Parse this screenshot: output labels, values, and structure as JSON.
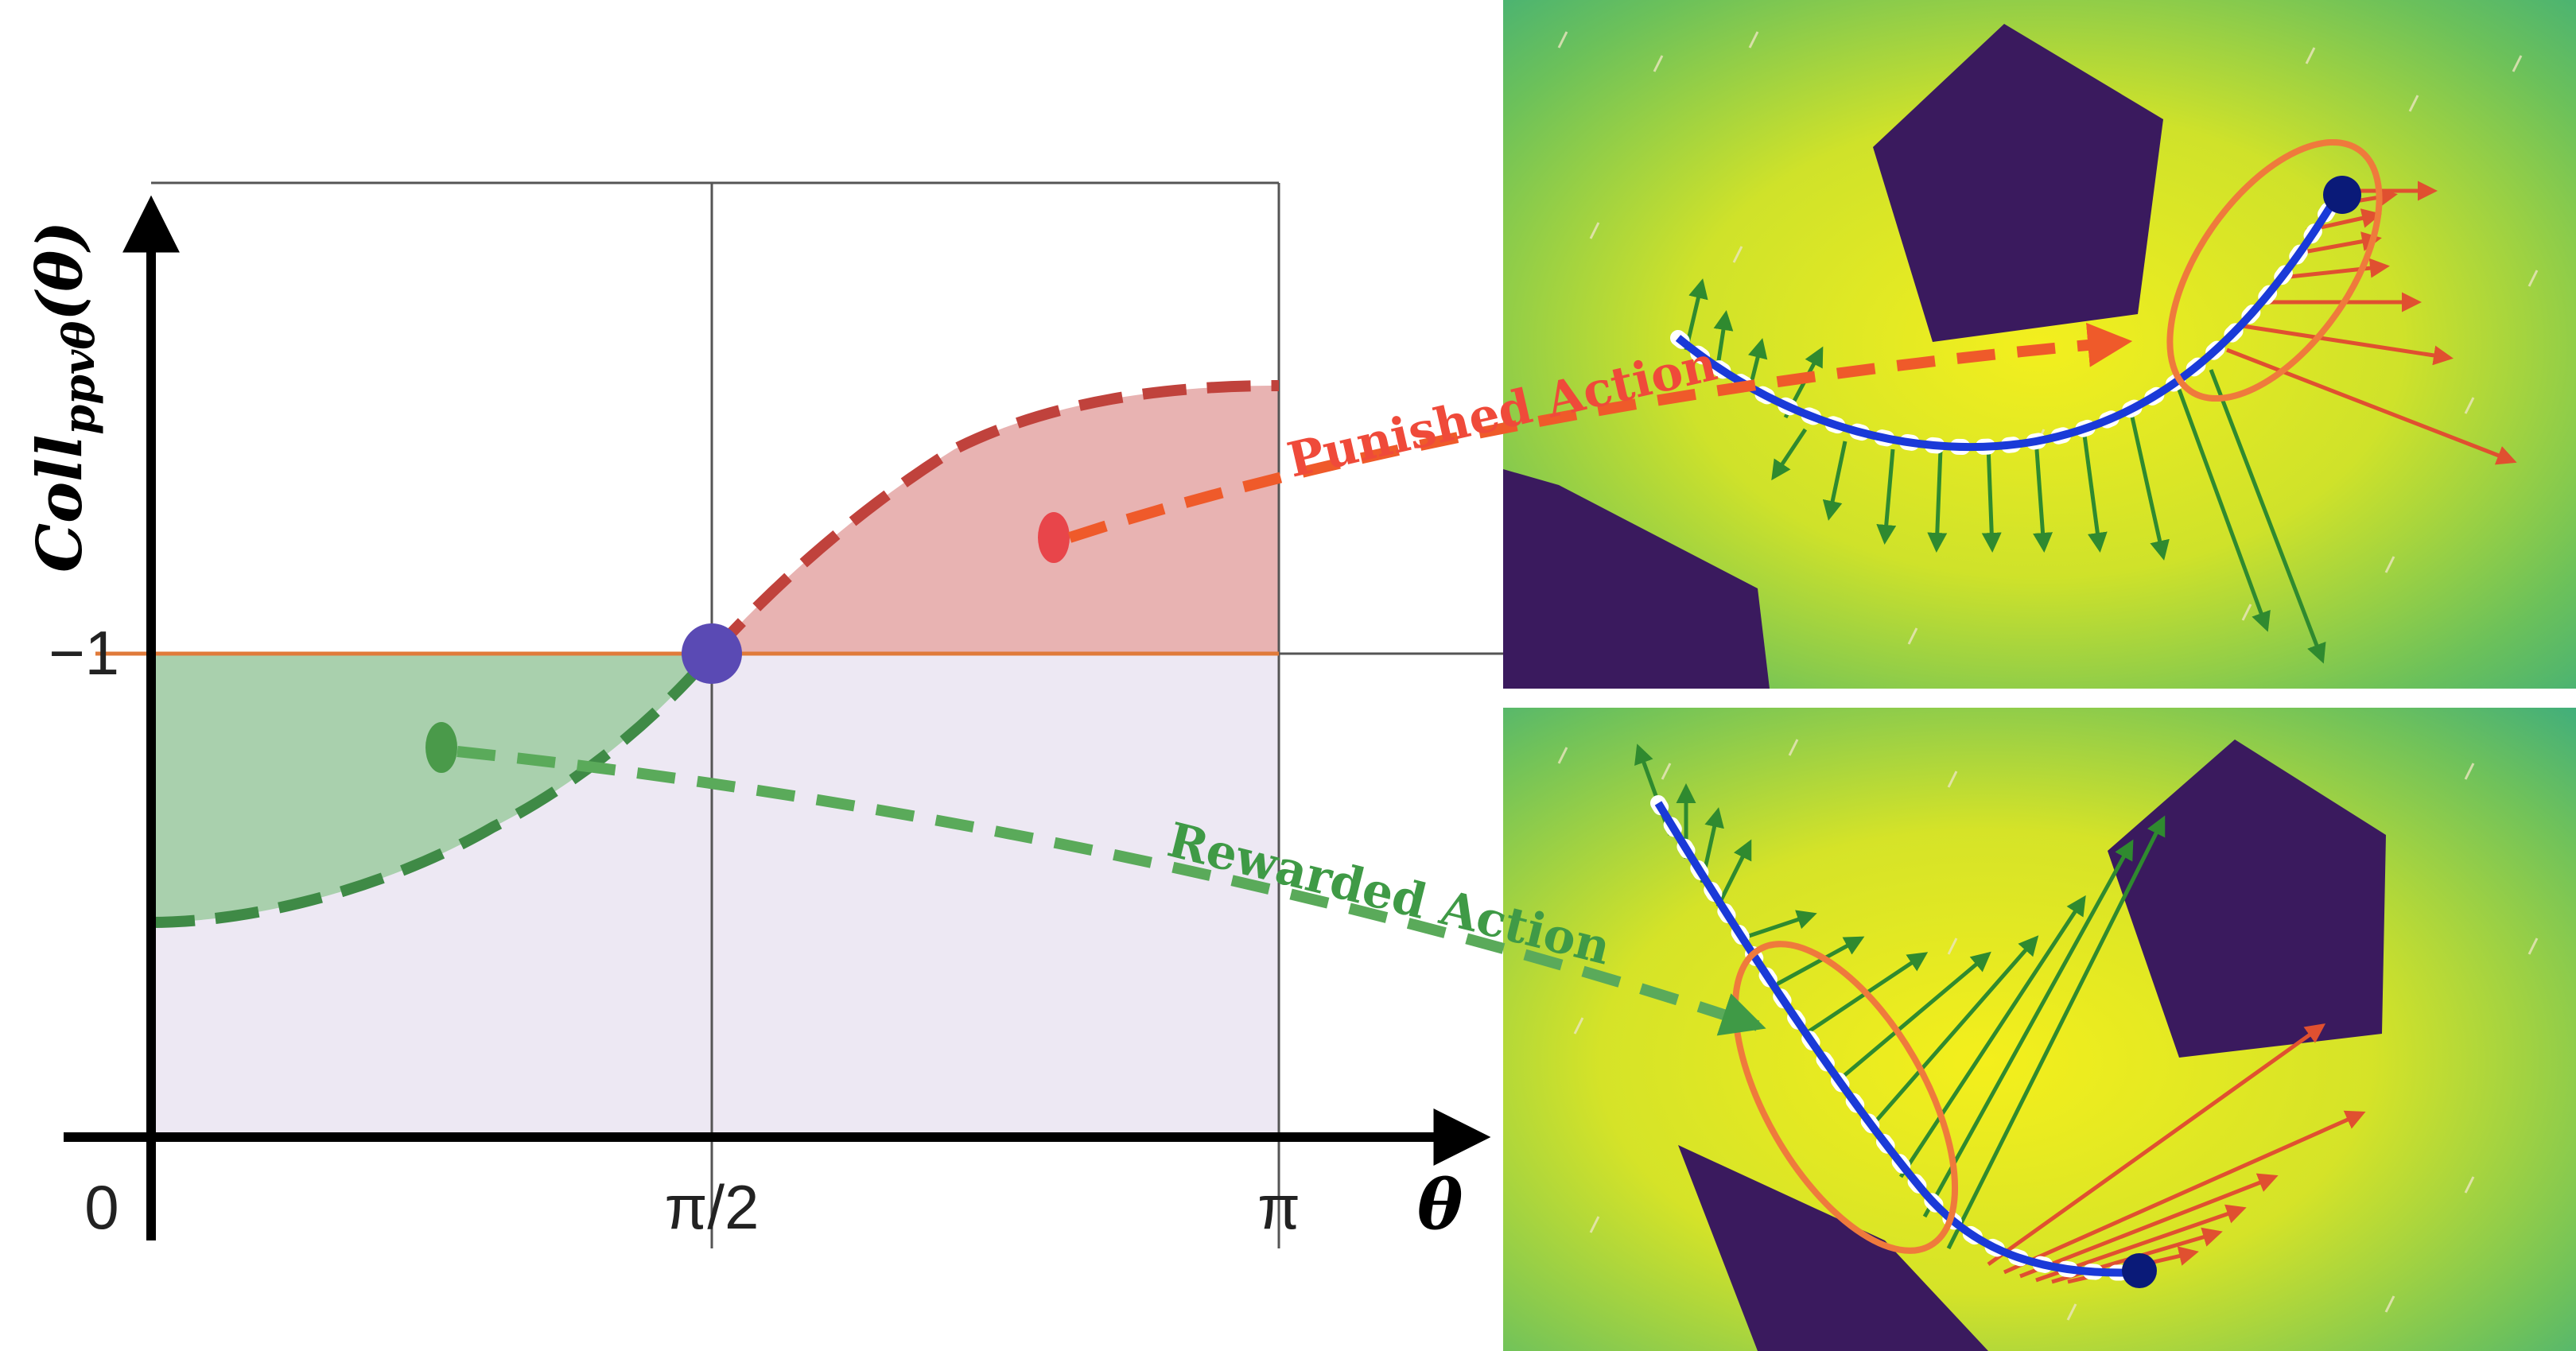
{
  "plot": {
    "y_axis_label": "Coll",
    "y_axis_sub": "ppvθ",
    "y_axis_arg": "(θ)",
    "x_axis_label": "θ",
    "x_ticks": [
      "0",
      "π/2",
      "π"
    ],
    "y_ticks": [
      "−1"
    ]
  },
  "annotations": {
    "punished": "Punished Action",
    "rewarded": "Rewarded Action"
  },
  "colors": {
    "punish": "#d44a4a",
    "reward": "#3f9a46",
    "region_bad": "#e8b3b2",
    "region_good": "#a9d0ad",
    "region_base": "#ede8f3",
    "threshold_line": "#e07a3a",
    "pivot": "#5a4ab4",
    "trajectory": "#1a3ad8",
    "obstacle": "#3a1a5e",
    "highlight_ellipse": "#ef7a3c"
  },
  "icons": [
    "pivot-dot",
    "trajectory-line",
    "obstacle-pentagon",
    "force-arrow"
  ]
}
